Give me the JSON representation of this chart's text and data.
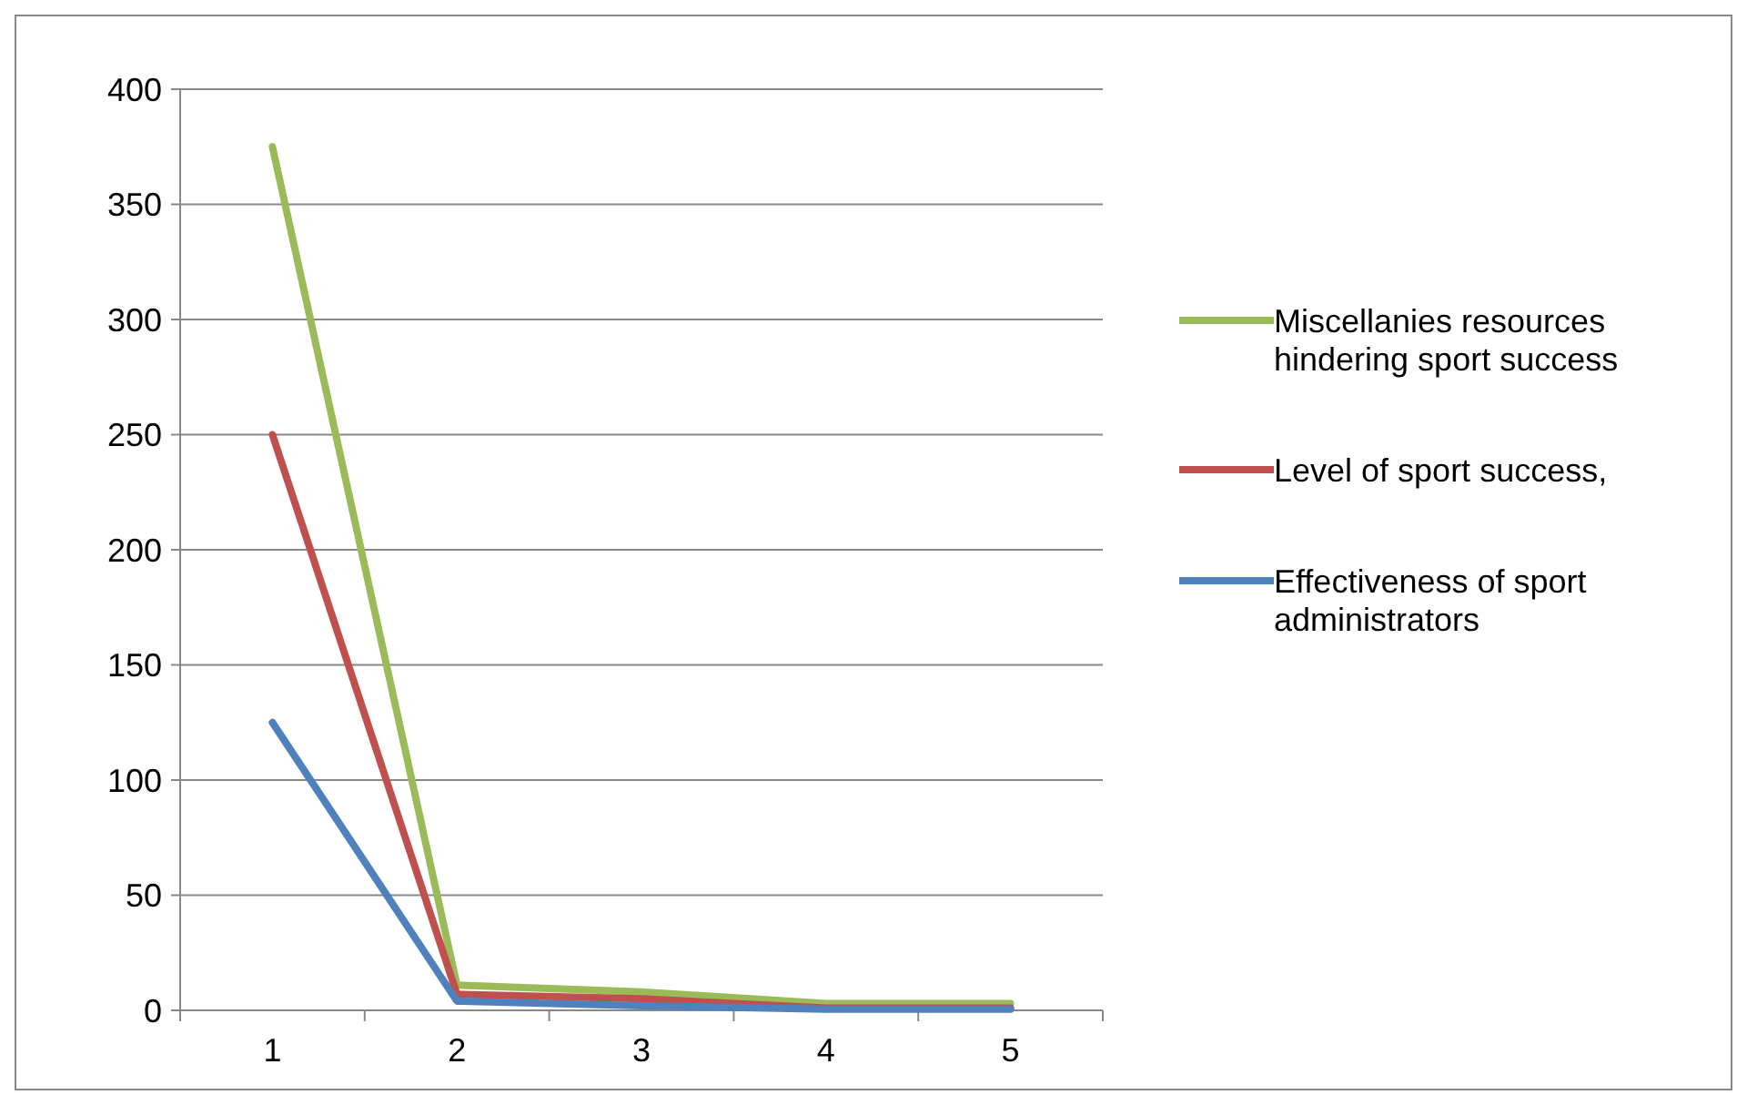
{
  "chart_data": {
    "type": "line",
    "categories": [
      "1",
      "2",
      "3",
      "4",
      "5"
    ],
    "ylim": [
      0,
      400
    ],
    "yticks": [
      0,
      50,
      100,
      150,
      200,
      250,
      300,
      350,
      400
    ],
    "grid": "y",
    "legend": "right",
    "marker": "none",
    "line_style": "solid",
    "series": [
      {
        "name": "Miscellanies resources hindering sport success",
        "color": "#9bbb59",
        "values": [
          375,
          11,
          8,
          3,
          3
        ]
      },
      {
        "name": "Level of sport success,",
        "color": "#c0504d",
        "values": [
          250,
          7,
          5,
          1,
          1
        ]
      },
      {
        "name": "Effectiveness of sport administrators",
        "color": "#4f81bd",
        "values": [
          125,
          4,
          2,
          0.5,
          0.5
        ]
      }
    ]
  }
}
